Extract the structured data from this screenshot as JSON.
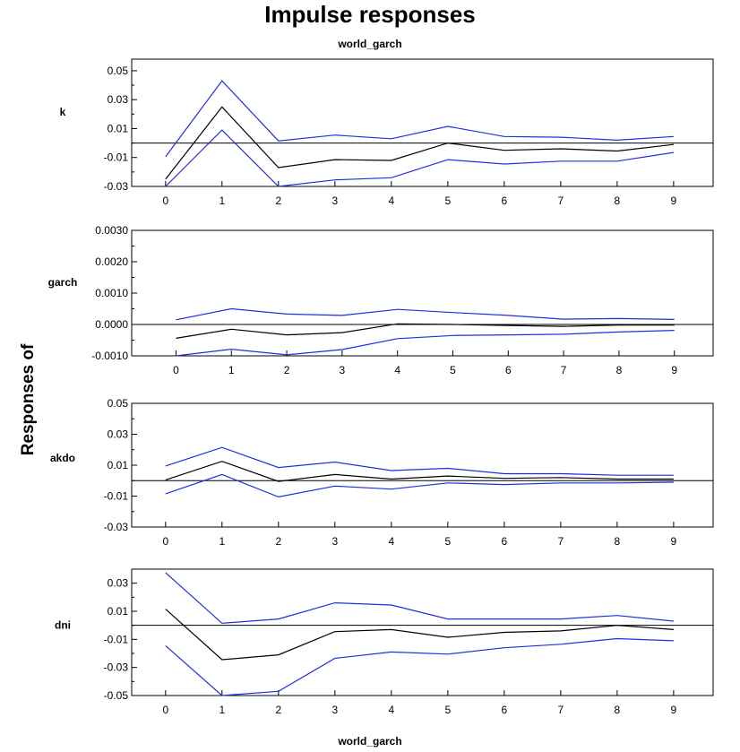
{
  "chart": {
    "title": "Impulse responses",
    "subtitle": "world_garch",
    "xlabel": "world_garch",
    "ylabel": "Responses of"
  },
  "colors": {
    "response": "#000000",
    "bands": "#1f2ee0",
    "frame": "#000000"
  },
  "chart_data": [
    {
      "type": "line",
      "panel_label": "k",
      "x": [
        0,
        1,
        2,
        3,
        4,
        5,
        6,
        7,
        8,
        9
      ],
      "xticks": [
        "0",
        "1",
        "2",
        "3",
        "4",
        "5",
        "6",
        "7",
        "8",
        "9"
      ],
      "xlim": [
        -0.6,
        9.7
      ],
      "ylim": [
        -0.03,
        0.058
      ],
      "yticks": [
        "0.05",
        "0.03",
        "0.01",
        "-0.01",
        "-0.03"
      ],
      "ytick_values": [
        0.05,
        0.03,
        0.01,
        -0.01,
        -0.03
      ],
      "zero_line": true,
      "series": [
        {
          "role": "response",
          "values": [
            -0.025,
            0.025,
            -0.017,
            -0.0115,
            -0.012,
            0.0,
            -0.005,
            -0.004,
            -0.0055,
            -0.001
          ]
        },
        {
          "role": "upper",
          "values": [
            -0.0095,
            0.043,
            0.0015,
            0.0055,
            0.003,
            0.0115,
            0.0045,
            0.004,
            0.002,
            0.0045
          ]
        },
        {
          "role": "lower",
          "values": [
            -0.03,
            0.009,
            -0.03,
            -0.0255,
            -0.024,
            -0.0115,
            -0.0145,
            -0.0125,
            -0.0125,
            -0.0065
          ]
        }
      ]
    },
    {
      "type": "line",
      "panel_label": "garch",
      "x": [
        0,
        1,
        2,
        3,
        4,
        5,
        6,
        7,
        8,
        9
      ],
      "xticks": [
        "0",
        "1",
        "2",
        "3",
        "4",
        "5",
        "6",
        "7",
        "8",
        "9"
      ],
      "xlim": [
        -0.8,
        9.7
      ],
      "ylim": [
        -0.001,
        0.003
      ],
      "yticks": [
        "0.0030",
        "0.0020",
        "0.0010",
        "0.0000",
        "-0.0010"
      ],
      "ytick_values": [
        0.003,
        0.002,
        0.001,
        0.0,
        -0.001
      ],
      "zero_line": true,
      "series": [
        {
          "role": "response",
          "values": [
            -0.00044,
            -0.00015,
            -0.00033,
            -0.00026,
            2e-05,
            0.0,
            -3e-05,
            -6e-05,
            -2e-05,
            -2e-05
          ]
        },
        {
          "role": "upper",
          "values": [
            0.00015,
            0.0005,
            0.00033,
            0.00029,
            0.00048,
            0.00038,
            0.00029,
            0.00017,
            0.00019,
            0.00016
          ]
        },
        {
          "role": "lower",
          "values": [
            -0.001,
            -0.00079,
            -0.00097,
            -0.0008,
            -0.00045,
            -0.00035,
            -0.00033,
            -0.00031,
            -0.00024,
            -0.00019
          ]
        }
      ]
    },
    {
      "type": "line",
      "panel_label": "akdo",
      "x": [
        0,
        1,
        2,
        3,
        4,
        5,
        6,
        7,
        8,
        9
      ],
      "xticks": [
        "0",
        "1",
        "2",
        "3",
        "4",
        "5",
        "6",
        "7",
        "8",
        "9"
      ],
      "xlim": [
        -0.6,
        9.7
      ],
      "ylim": [
        -0.03,
        0.05
      ],
      "yticks": [
        "0.05",
        "0.03",
        "0.01",
        "-0.01",
        "-0.03"
      ],
      "ytick_values": [
        0.05,
        0.03,
        0.01,
        -0.01,
        -0.03
      ],
      "zero_line": true,
      "series": [
        {
          "role": "response",
          "values": [
            0.0005,
            0.0125,
            -0.0005,
            0.004,
            0.001,
            0.003,
            0.0015,
            0.002,
            0.001,
            0.001
          ]
        },
        {
          "role": "upper",
          "values": [
            0.0095,
            0.0215,
            0.0085,
            0.012,
            0.0065,
            0.008,
            0.0045,
            0.0045,
            0.0035,
            0.0035
          ]
        },
        {
          "role": "lower",
          "values": [
            -0.0085,
            0.004,
            -0.0105,
            -0.0035,
            -0.0055,
            -0.0015,
            -0.0025,
            -0.0015,
            -0.0015,
            -0.001
          ]
        }
      ]
    },
    {
      "type": "line",
      "panel_label": "dni",
      "x": [
        0,
        1,
        2,
        3,
        4,
        5,
        6,
        7,
        8,
        9
      ],
      "xticks": [
        "0",
        "1",
        "2",
        "3",
        "4",
        "5",
        "6",
        "7",
        "8",
        "9"
      ],
      "xlim": [
        -0.6,
        9.7
      ],
      "ylim": [
        -0.05,
        0.04
      ],
      "yticks": [
        "0.03",
        "0.01",
        "-0.01",
        "-0.03",
        "-0.05"
      ],
      "ytick_values": [
        0.03,
        0.01,
        -0.01,
        -0.03,
        -0.05
      ],
      "zero_line": true,
      "series": [
        {
          "role": "response",
          "values": [
            0.0115,
            -0.0245,
            -0.021,
            -0.0045,
            -0.003,
            -0.0085,
            -0.005,
            -0.004,
            0.0,
            -0.003
          ]
        },
        {
          "role": "upper",
          "values": [
            0.0375,
            0.0015,
            0.0045,
            0.016,
            0.0145,
            0.0045,
            0.0045,
            0.0045,
            0.007,
            0.003
          ]
        },
        {
          "role": "lower",
          "values": [
            -0.0145,
            -0.05,
            -0.047,
            -0.0235,
            -0.019,
            -0.0205,
            -0.016,
            -0.0135,
            -0.0095,
            -0.011
          ]
        }
      ]
    }
  ]
}
